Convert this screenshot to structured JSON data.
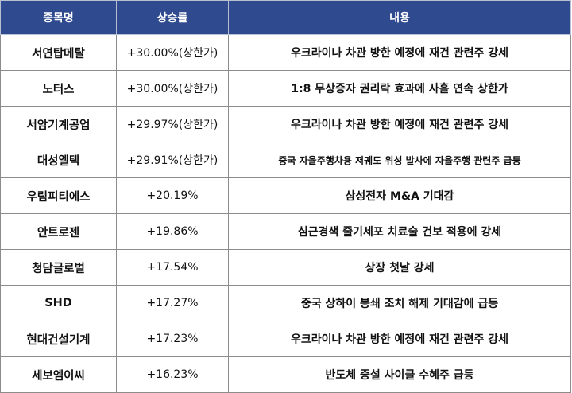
{
  "table": {
    "headers": [
      "종목명",
      "상승률",
      "내용"
    ],
    "rows": [
      {
        "name": "서연탑메탈",
        "rate": "+30.00%(상한가)",
        "desc": "우크라이나 차관 방한 예정에 재건 관련주 강세"
      },
      {
        "name": "노터스",
        "rate": "+30.00%(상한가)",
        "desc": "1:8 무상증자 권리락 효과에 사흘 연속 상한가"
      },
      {
        "name": "서암기계공업",
        "rate": "+29.97%(상한가)",
        "desc": "우크라이나 차관 방한 예정에 재건 관련주 강세"
      },
      {
        "name": "대성엘텍",
        "rate": "+29.91%(상한가)",
        "desc": "중국 자율주행차용 저궤도 위성 발사에 자율주행 관련주 급등"
      },
      {
        "name": "우림피티에스",
        "rate": "+20.19%",
        "desc": "삼성전자 M&A 기대감"
      },
      {
        "name": "안트로젠",
        "rate": "+19.86%",
        "desc": "심근경색 줄기세포 치료술 건보 적용에 강세"
      },
      {
        "name": "청담글로벌",
        "rate": "+17.54%",
        "desc": "상장 첫날 강세"
      },
      {
        "name": "SHD",
        "rate": "+17.27%",
        "desc": "중국 상하이 봉쇄 조치 해제 기대감에 급등"
      },
      {
        "name": "현대건설기계",
        "rate": "+17.23%",
        "desc": "우크라이나 차관 방한 예정에 재건 관련주 강세"
      },
      {
        "name": "세보엠이씨",
        "rate": "+16.23%",
        "desc": "반도체 증설 사이클 수혜주 급등"
      }
    ]
  },
  "colors": {
    "header_bg": "#2f4a8f",
    "header_text": "#ffffff",
    "border": "#8c8c8c"
  }
}
